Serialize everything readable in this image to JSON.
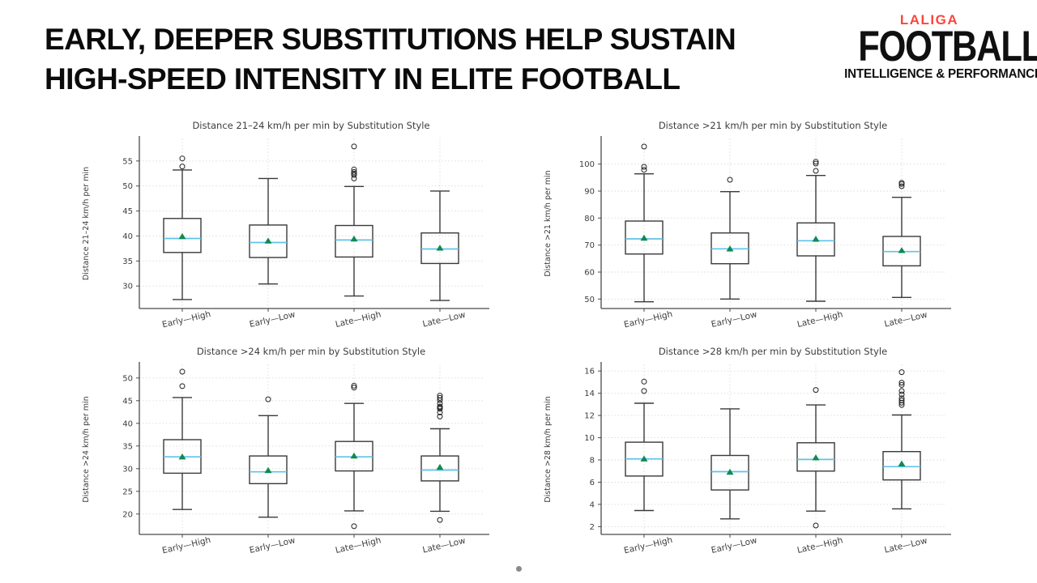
{
  "header": {
    "title_line1": "EARLY, DEEPER SUBSTITUTIONS HELP SUSTAIN",
    "title_line2": "HIGH-SPEED INTENSITY IN ELITE FOOTBALL"
  },
  "logo": {
    "brand": "LALIGA",
    "brand_color": "#ff453c",
    "title": "FOOTBALL",
    "tagline": "INTELLIGENCE & PERFORMANCE"
  },
  "footer": {
    "dot_color": "#8a8a8a"
  },
  "chart_style": {
    "text": "#3d3d3d",
    "spine": "#4a4a4a",
    "grid": "#d9d9d9",
    "box": "#3a3a3a",
    "median": "#5fc3e8",
    "mean": "#0f8a52",
    "outlier": "#222222"
  },
  "chart_data": [
    {
      "type": "boxplot",
      "title": "Distance 21–24 km/h per min by Substitution Style",
      "ylabel": "Distance 21–24 km/h per min",
      "xlabel": "",
      "categories": [
        "Early—High",
        "Early—Low",
        "Late—High",
        "Late—Low"
      ],
      "yticks": [
        30,
        35,
        40,
        45,
        50,
        55
      ],
      "ylim": [
        25.5,
        59.5
      ],
      "grid": true,
      "series": [
        {
          "name": "Early—High",
          "whisker_low": 27.3,
          "q1": 36.7,
          "median": 39.5,
          "q3": 43.5,
          "whisker_high": 53.2,
          "mean": 39.9,
          "outliers": [
            53.9,
            55.5
          ]
        },
        {
          "name": "Early—Low",
          "whisker_low": 30.4,
          "q1": 35.7,
          "median": 38.7,
          "q3": 42.2,
          "whisker_high": 51.5,
          "mean": 39.0,
          "outliers": []
        },
        {
          "name": "Late—High",
          "whisker_low": 28.0,
          "q1": 35.8,
          "median": 39.2,
          "q3": 42.1,
          "whisker_high": 49.9,
          "mean": 39.4,
          "outliers": [
            51.5,
            52.2,
            52.5,
            52.8,
            53.3,
            57.9
          ]
        },
        {
          "name": "Late—Low",
          "whisker_low": 27.1,
          "q1": 34.5,
          "median": 37.4,
          "q3": 40.6,
          "whisker_high": 49.0,
          "mean": 37.6,
          "outliers": []
        }
      ]
    },
    {
      "type": "boxplot",
      "title": "Distance >21 km/h per min by Substitution Style",
      "ylabel": "Distance >21 km/h per min",
      "xlabel": "",
      "categories": [
        "Early—High",
        "Early—Low",
        "Late—High",
        "Late—Low"
      ],
      "yticks": [
        50,
        60,
        70,
        80,
        90,
        100
      ],
      "ylim": [
        46.5,
        109.5
      ],
      "grid": true,
      "series": [
        {
          "name": "Early—High",
          "whisker_low": 49.0,
          "q1": 66.7,
          "median": 72.3,
          "q3": 78.9,
          "whisker_high": 96.4,
          "mean": 72.6,
          "outliers": [
            97.9,
            99.0,
            106.5
          ]
        },
        {
          "name": "Early—Low",
          "whisker_low": 50.0,
          "q1": 63.1,
          "median": 68.6,
          "q3": 74.5,
          "whisker_high": 89.8,
          "mean": 68.6,
          "outliers": [
            94.2
          ]
        },
        {
          "name": "Late—High",
          "whisker_low": 49.2,
          "q1": 66.0,
          "median": 71.6,
          "q3": 78.2,
          "whisker_high": 95.8,
          "mean": 72.2,
          "outliers": [
            97.5,
            100.2,
            100.9
          ]
        },
        {
          "name": "Late—Low",
          "whisker_low": 50.6,
          "q1": 62.3,
          "median": 67.6,
          "q3": 73.2,
          "whisker_high": 87.7,
          "mean": 68.0,
          "outliers": [
            91.8,
            92.6,
            93.1
          ]
        }
      ]
    },
    {
      "type": "boxplot",
      "title": "Distance >24 km/h per min by Substitution Style",
      "ylabel": "Distance >24 km/h per min",
      "xlabel": "",
      "categories": [
        "Early—High",
        "Early—Low",
        "Late—High",
        "Late—Low"
      ],
      "yticks": [
        20,
        25,
        30,
        35,
        40,
        45,
        50
      ],
      "ylim": [
        15.5,
        53.0
      ],
      "grid": true,
      "series": [
        {
          "name": "Early—High",
          "whisker_low": 21.0,
          "q1": 29.0,
          "median": 32.6,
          "q3": 36.4,
          "whisker_high": 45.7,
          "mean": 32.6,
          "outliers": [
            48.2,
            51.4
          ]
        },
        {
          "name": "Early—Low",
          "whisker_low": 19.3,
          "q1": 26.7,
          "median": 29.3,
          "q3": 32.8,
          "whisker_high": 41.7,
          "mean": 29.6,
          "outliers": [
            45.3
          ]
        },
        {
          "name": "Late—High",
          "whisker_low": 20.7,
          "q1": 29.5,
          "median": 32.6,
          "q3": 36.0,
          "whisker_high": 44.4,
          "mean": 32.8,
          "outliers": [
            17.3,
            47.9,
            48.3
          ]
        },
        {
          "name": "Late—Low",
          "whisker_low": 20.6,
          "q1": 27.3,
          "median": 29.7,
          "q3": 32.8,
          "whisker_high": 38.8,
          "mean": 30.3,
          "outliers": [
            18.7,
            41.5,
            42.4,
            43.2,
            43.5,
            43.7,
            44.4,
            45.1,
            45.6,
            46.1
          ]
        }
      ]
    },
    {
      "type": "boxplot",
      "title": "Distance >28 km/h per min by Substitution Style",
      "ylabel": "Distance >28 km/h per min",
      "xlabel": "",
      "categories": [
        "Early—High",
        "Early—Low",
        "Late—High",
        "Late—Low"
      ],
      "yticks": [
        2,
        4,
        6,
        8,
        10,
        12,
        14,
        16
      ],
      "ylim": [
        1.3,
        16.6
      ],
      "grid": true,
      "series": [
        {
          "name": "Early—High",
          "whisker_low": 3.45,
          "q1": 6.55,
          "median": 8.1,
          "q3": 9.6,
          "whisker_high": 13.1,
          "mean": 8.1,
          "outliers": [
            14.2,
            15.05
          ]
        },
        {
          "name": "Early—Low",
          "whisker_low": 2.7,
          "q1": 5.3,
          "median": 6.95,
          "q3": 8.4,
          "whisker_high": 12.6,
          "mean": 6.9,
          "outliers": []
        },
        {
          "name": "Late—High",
          "whisker_low": 3.4,
          "q1": 7.0,
          "median": 8.05,
          "q3": 9.55,
          "whisker_high": 12.95,
          "mean": 8.2,
          "outliers": [
            2.1,
            14.3
          ]
        },
        {
          "name": "Late—Low",
          "whisker_low": 3.6,
          "q1": 6.2,
          "median": 7.4,
          "q3": 8.75,
          "whisker_high": 12.05,
          "mean": 7.65,
          "outliers": [
            12.95,
            13.15,
            13.35,
            13.55,
            13.9,
            14.2,
            14.75,
            14.95,
            15.9
          ]
        }
      ]
    }
  ]
}
